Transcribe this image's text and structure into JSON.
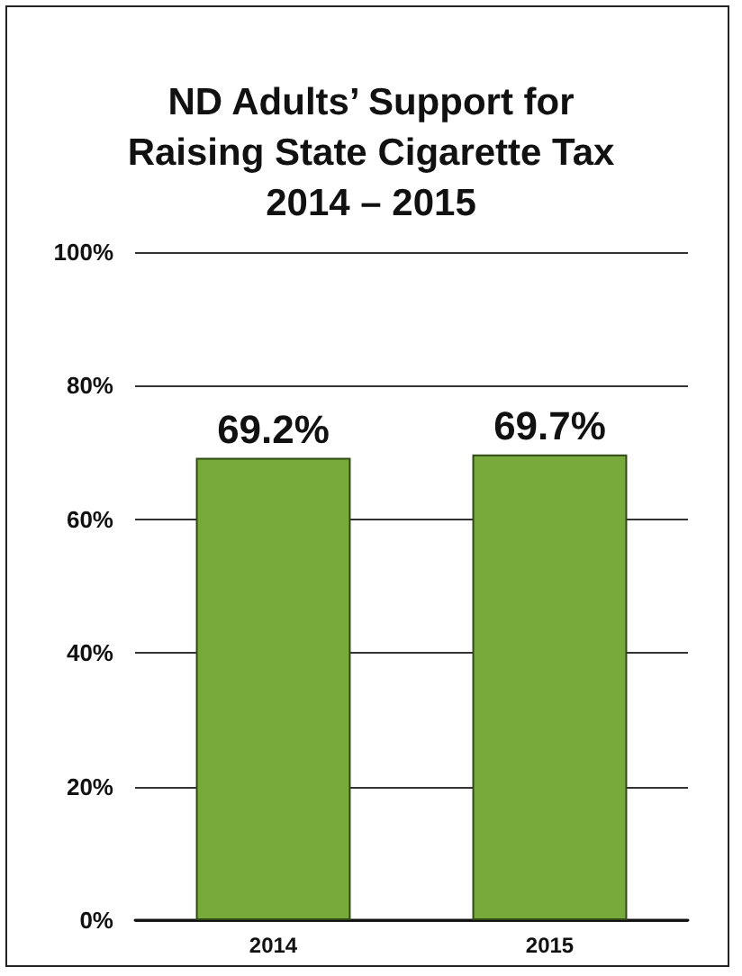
{
  "chart_data": {
    "type": "bar",
    "title": "ND Adults’ Support for\nRaising State Cigarette Tax\n2014 – 2015",
    "categories": [
      "2014",
      "2015"
    ],
    "values": [
      69.2,
      69.7
    ],
    "color": "#77a93b",
    "value_labels": [
      "69.2%",
      "69.7%"
    ],
    "ylim": [
      0,
      100
    ],
    "yticks": [
      {
        "value": 0,
        "label": "0%"
      },
      {
        "value": 20,
        "label": "20%"
      },
      {
        "value": 40,
        "label": "40%"
      },
      {
        "value": 60,
        "label": "60%"
      },
      {
        "value": 80,
        "label": "80%"
      },
      {
        "value": 100,
        "label": "100%"
      }
    ],
    "grid": "y"
  }
}
